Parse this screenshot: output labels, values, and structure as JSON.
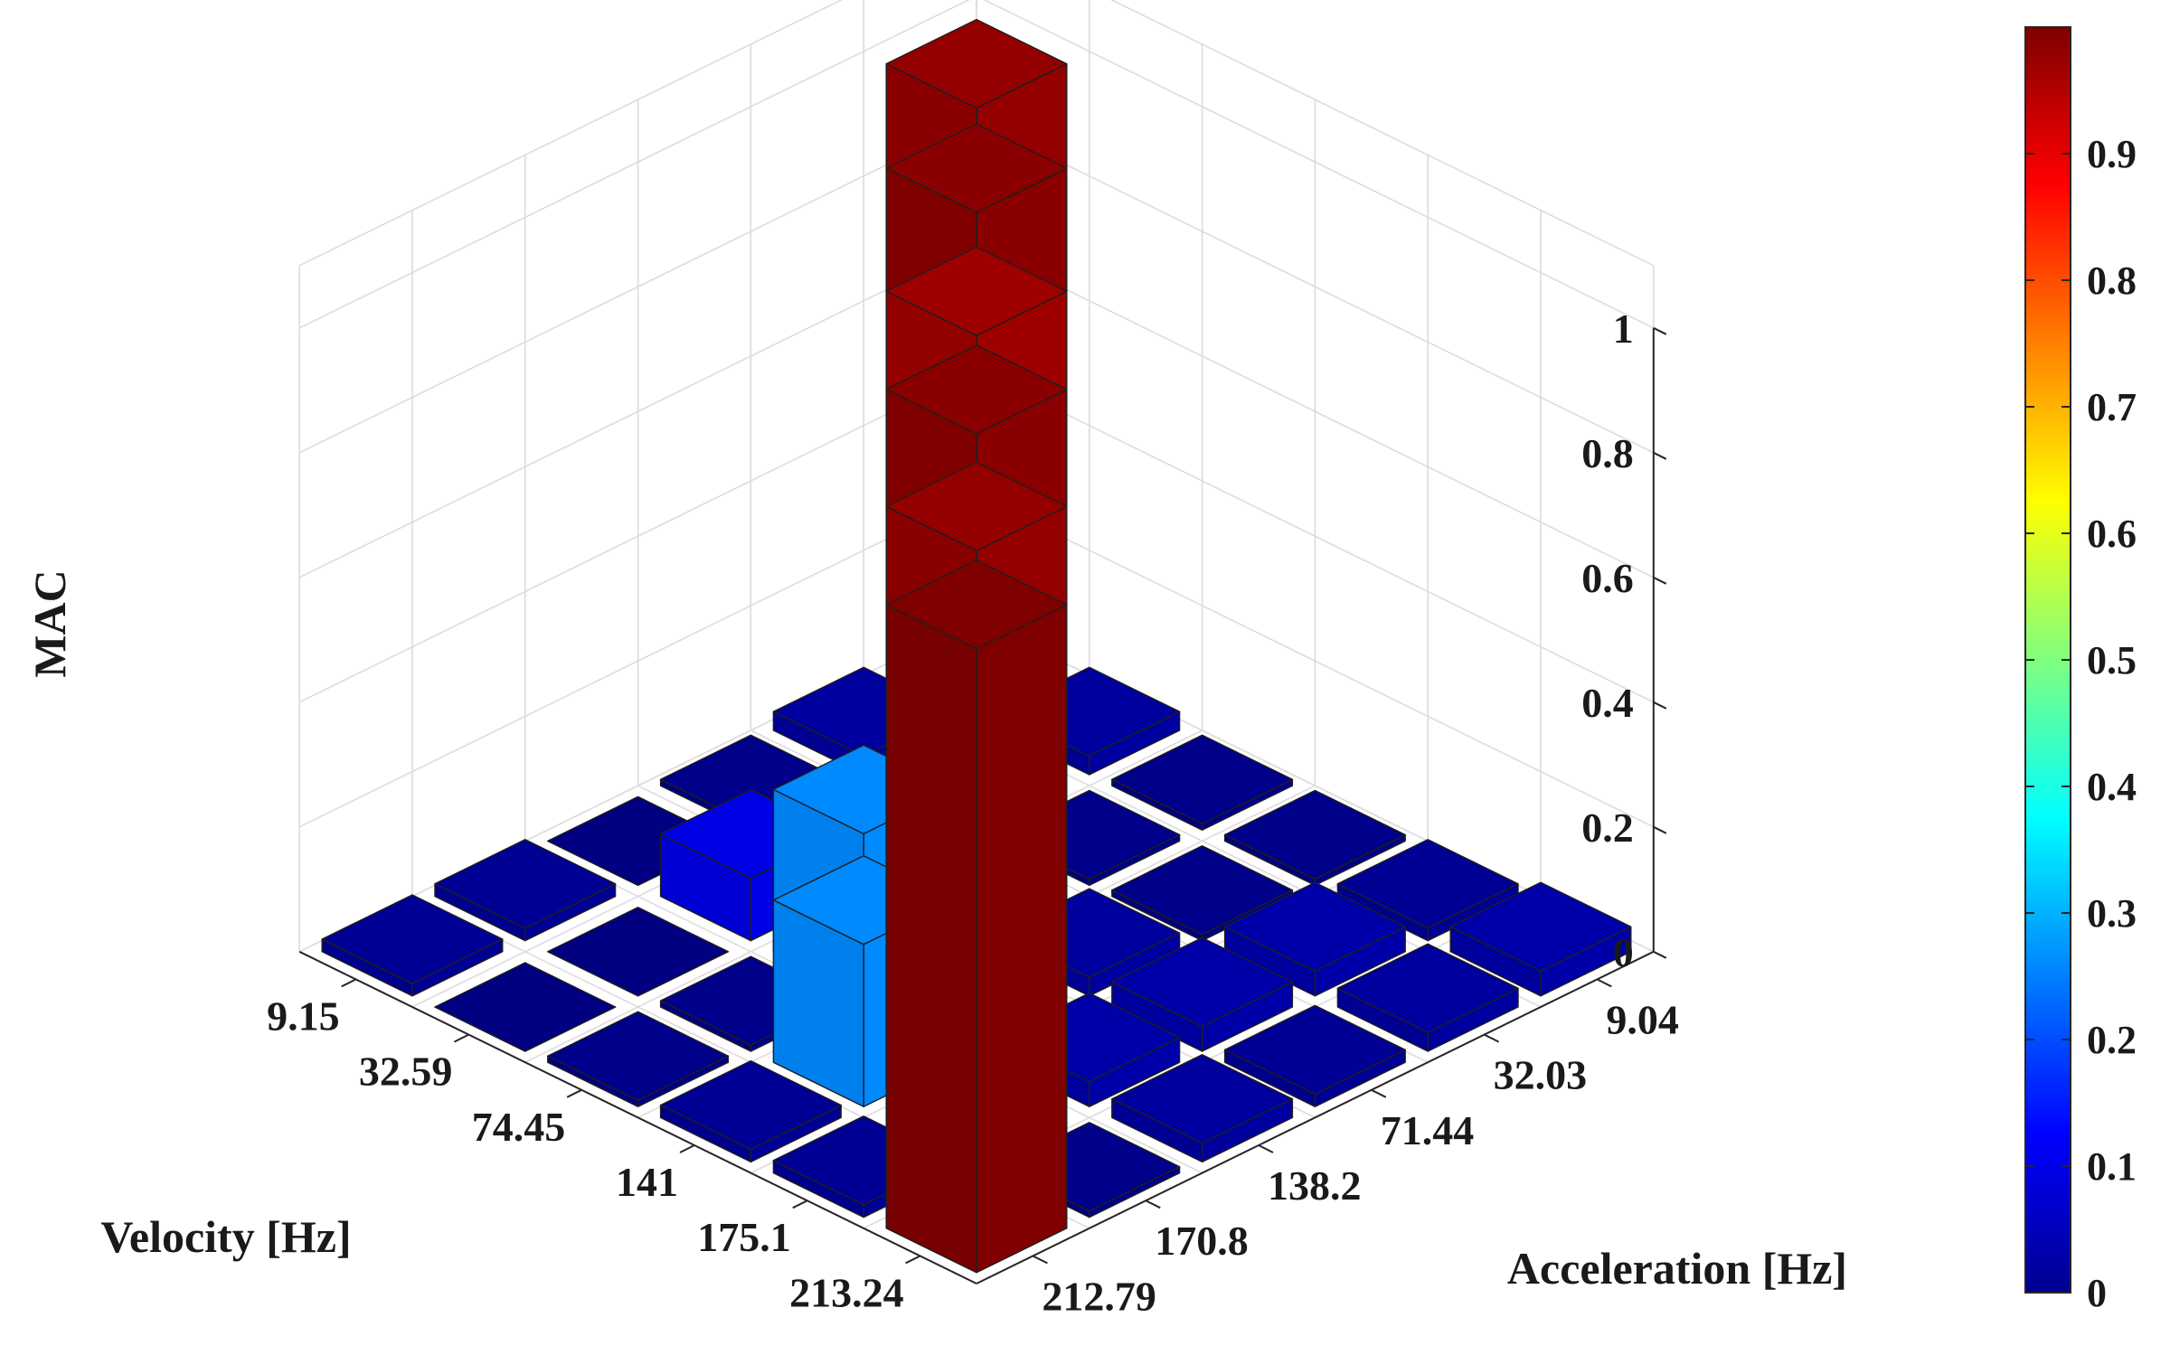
{
  "chart_data": {
    "type": "bar3d",
    "zlabel": "MAC",
    "xlabel": "Velocity [Hz]",
    "ylabel": "Acceleration [Hz]",
    "velocity_ticks": [
      "9.15",
      "32.59",
      "74.45",
      "141",
      "175.1",
      "213.24"
    ],
    "acceleration_ticks": [
      "9.04",
      "32.03",
      "71.44",
      "138.2",
      "170.8",
      "212.79"
    ],
    "zlim": [
      0,
      1
    ],
    "z_ticks": [
      "0",
      "0.2",
      "0.4",
      "0.6",
      "0.8",
      "1"
    ],
    "colorbar": {
      "colormap": "jet",
      "range": [
        0,
        1
      ],
      "ticks": [
        "0",
        "0.1",
        "0.2",
        "0.3",
        "0.4",
        "0.5",
        "0.6",
        "0.7",
        "0.8",
        "0.9"
      ]
    },
    "grid": true,
    "values": [
      [
        0.98,
        0.03,
        0.01,
        0.0,
        0.02,
        0.02
      ],
      [
        0.03,
        0.99,
        0.03,
        0.1,
        0.0,
        0.0
      ],
      [
        0.01,
        0.01,
        0.97,
        0.26,
        0.01,
        0.01
      ],
      [
        0.01,
        0.01,
        0.03,
        0.99,
        0.26,
        0.02
      ],
      [
        0.02,
        0.04,
        0.04,
        0.04,
        0.98,
        0.02
      ],
      [
        0.04,
        0.03,
        0.02,
        0.03,
        0.01,
        1.0
      ]
    ]
  },
  "colors": {
    "grid": "#dcdcdc",
    "axis": "#262626",
    "edge": "#1e1e1e"
  }
}
